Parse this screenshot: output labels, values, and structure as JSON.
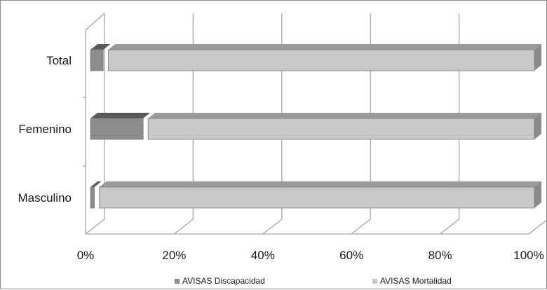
{
  "chart_data": {
    "type": "bar",
    "orientation": "horizontal",
    "stacking": "percent",
    "three_d": true,
    "title": "",
    "xlabel": "",
    "ylabel": "",
    "categories": [
      "Total",
      "Femenino",
      "Masculino"
    ],
    "series": [
      {
        "name": "AVISAS Discapacidad",
        "values": [
          4,
          13,
          2
        ],
        "color": "#8c8c8c",
        "top_color": "#595959"
      },
      {
        "name": "AVISAS Mortalidad",
        "values": [
          96,
          87,
          98
        ],
        "color": "#c8c8c8",
        "top_color": "#9a9a9a"
      }
    ],
    "xlim": [
      0,
      100
    ],
    "x_ticks": [
      "0%",
      "20%",
      "40%",
      "60%",
      "80%",
      "100%"
    ],
    "grid": true,
    "legend_position": "bottom"
  }
}
